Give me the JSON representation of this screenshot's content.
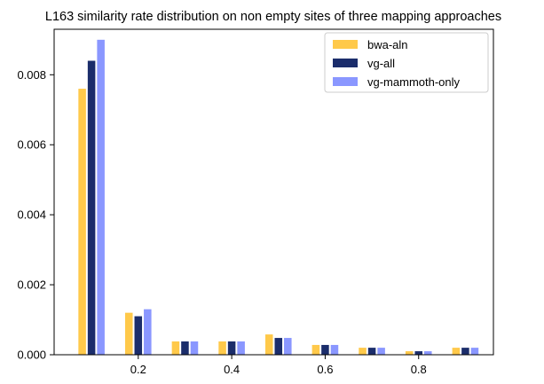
{
  "chart_data": {
    "type": "bar",
    "title": "L163 similarity rate distribution on non empty sites of three mapping approaches",
    "xlabel": "",
    "ylabel": "",
    "xlim": [
      0.02,
      0.96
    ],
    "ylim": [
      0,
      0.0093
    ],
    "x_ticks": [
      {
        "value": 0.2,
        "label": "0.2"
      },
      {
        "value": 0.4,
        "label": "0.4"
      },
      {
        "value": 0.6,
        "label": "0.6"
      },
      {
        "value": 0.8,
        "label": "0.8"
      }
    ],
    "y_ticks": [
      {
        "value": 0,
        "label": "0.000"
      },
      {
        "value": 0.002,
        "label": "0.002"
      },
      {
        "value": 0.004,
        "label": "0.004"
      },
      {
        "value": 0.006,
        "label": "0.006"
      },
      {
        "value": 0.008,
        "label": "0.008"
      }
    ],
    "x": [
      0.1,
      0.2,
      0.3,
      0.4,
      0.5,
      0.6,
      0.7,
      0.8,
      0.9
    ],
    "group_width": 0.06,
    "grid": false,
    "legend_position": "top-right",
    "series": [
      {
        "name": "bwa-aln",
        "color": "#FFC94A",
        "values": [
          0.0076,
          0.0012,
          0.00038,
          0.00038,
          0.00058,
          0.00028,
          0.0002,
          0.0001,
          0.0002
        ]
      },
      {
        "name": "vg-all",
        "color": "#1B2D6B",
        "values": [
          0.0084,
          0.0011,
          0.00038,
          0.00038,
          0.00048,
          0.00028,
          0.0002,
          0.0001,
          0.0002
        ]
      },
      {
        "name": "vg-mammoth-only",
        "color": "#8A97FF",
        "values": [
          0.009,
          0.0013,
          0.00038,
          0.00038,
          0.00048,
          0.00028,
          0.0002,
          0.0001,
          0.0002
        ]
      }
    ]
  }
}
